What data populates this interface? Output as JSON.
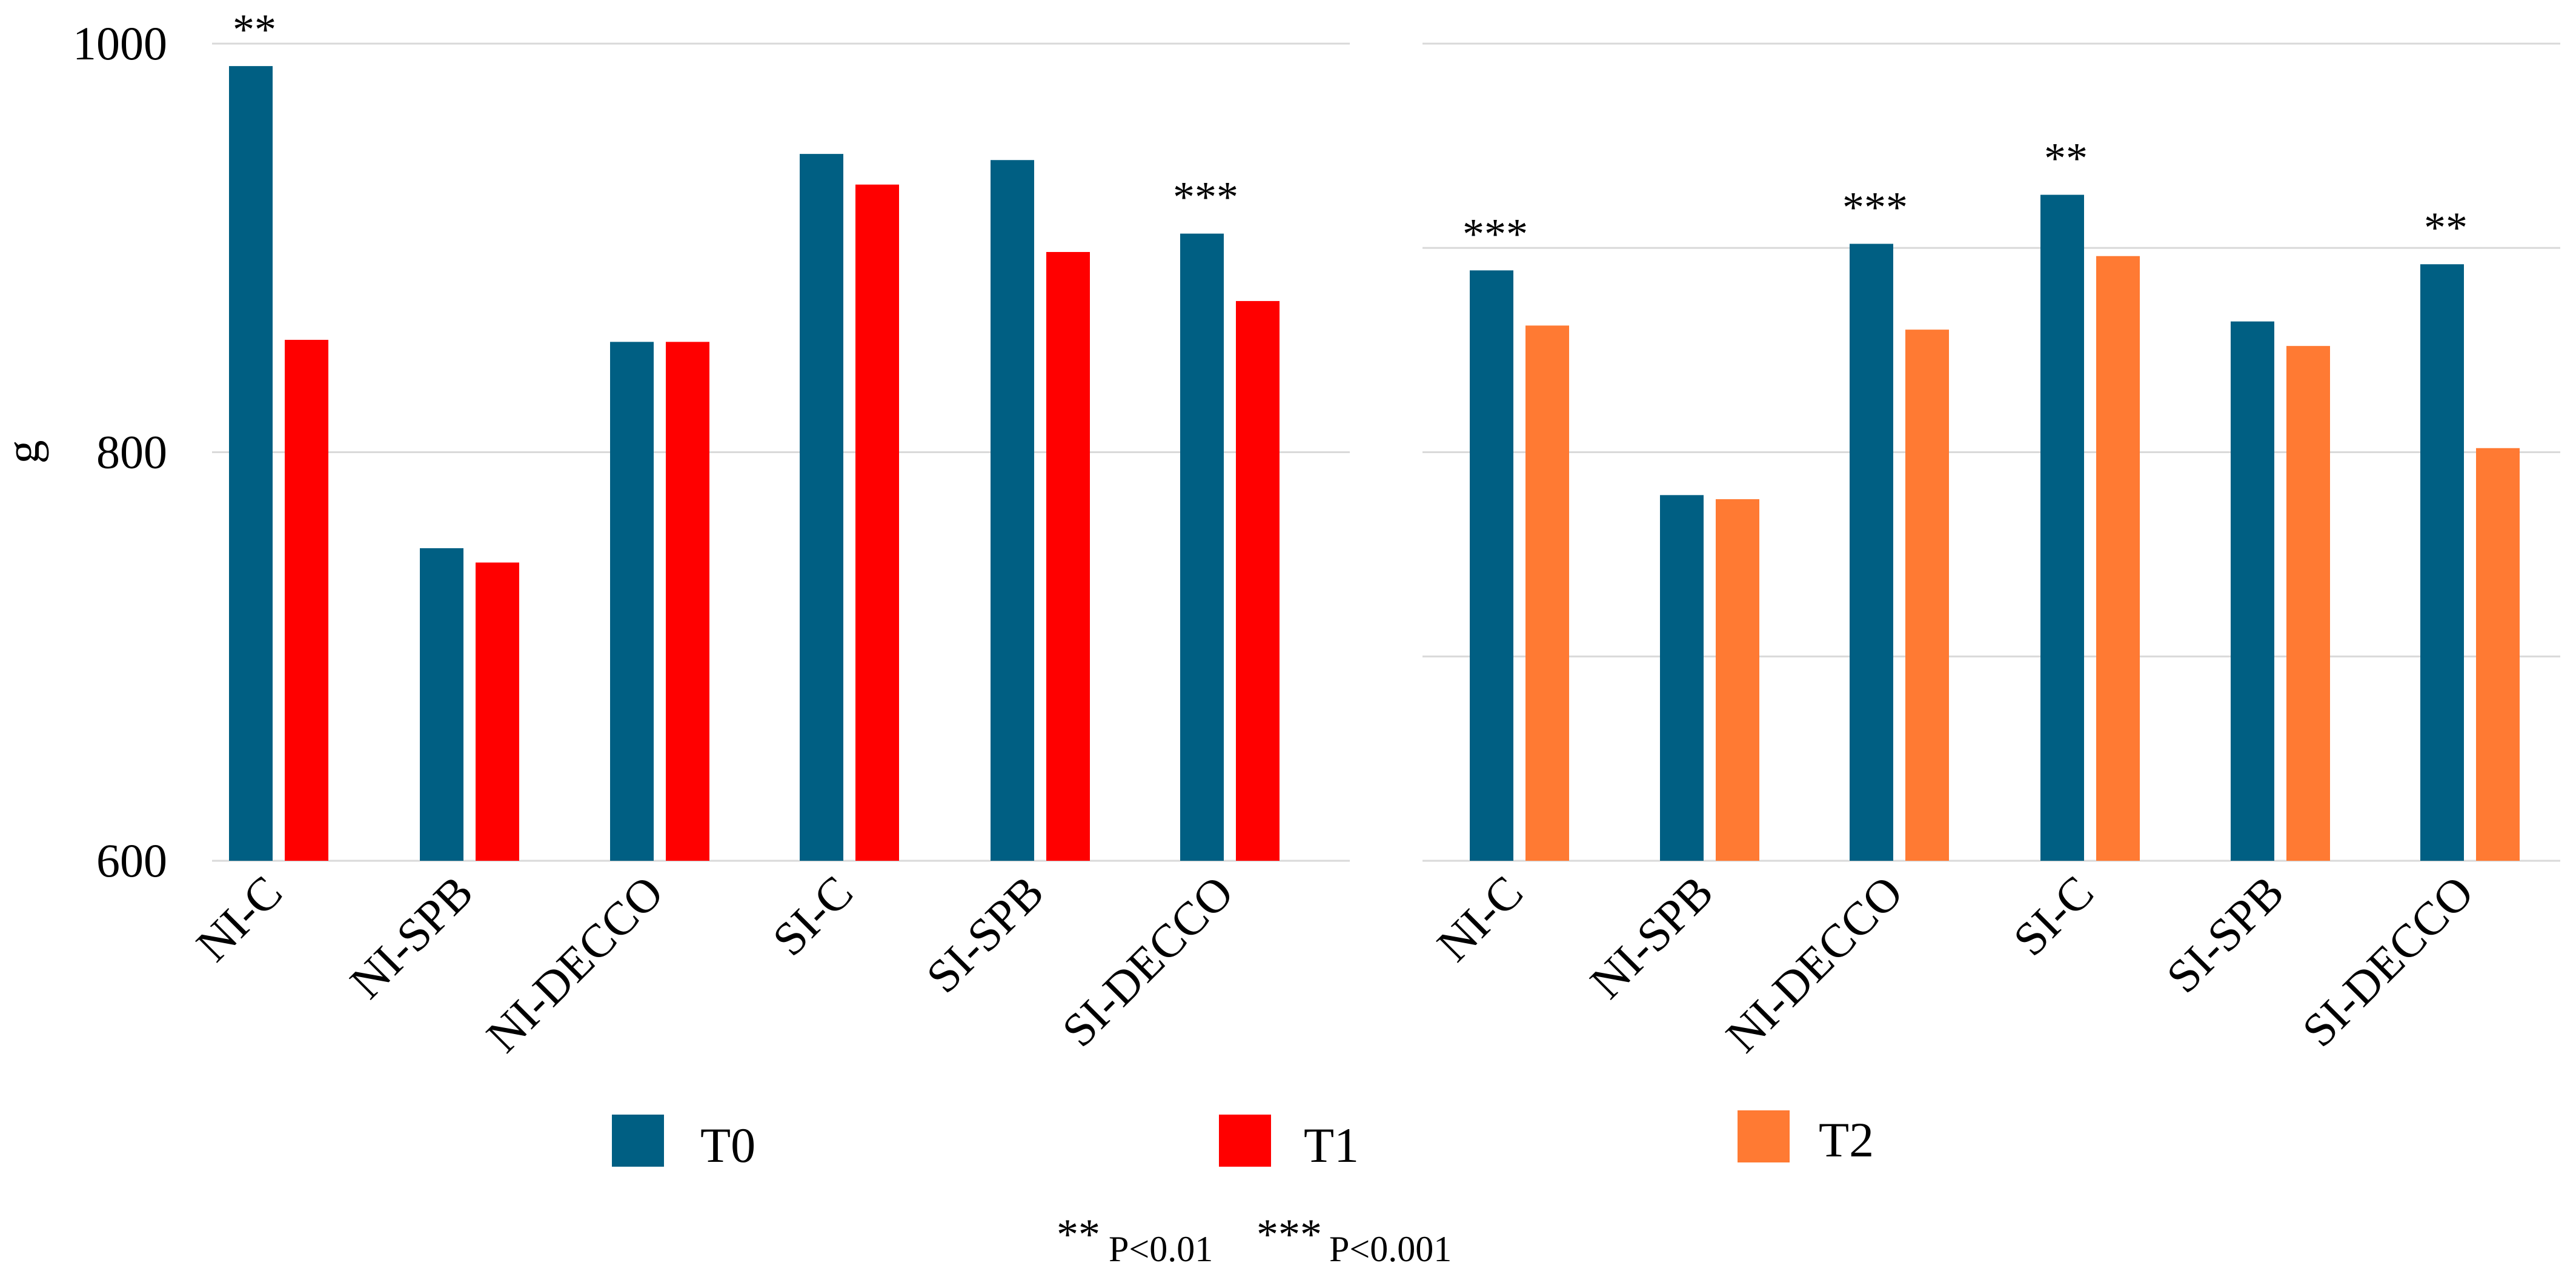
{
  "chart_data": [
    {
      "type": "bar",
      "panel": "left",
      "ylabel": "g",
      "ylim": [
        600,
        1000
      ],
      "yticks": [
        "600",
        "800",
        "1000"
      ],
      "gridlines": [
        600,
        800,
        1000
      ],
      "categories": [
        "NI-C",
        "NI-SPB",
        "NI-DECCO",
        "SI-C",
        "SI-SPB",
        "SI-DECCO"
      ],
      "series": [
        {
          "name": "T0",
          "color": "#005f83",
          "values": [
            989,
            753,
            854,
            946,
            943,
            907
          ]
        },
        {
          "name": "T1",
          "color": "#ff0000",
          "values": [
            855,
            746,
            854,
            931,
            898,
            874
          ]
        }
      ],
      "significance": [
        "**",
        "",
        "",
        "",
        "",
        "***"
      ]
    },
    {
      "type": "bar",
      "panel": "right",
      "ylim": [
        600,
        1000
      ],
      "gridlines": [
        600,
        700,
        800,
        900,
        1000
      ],
      "categories": [
        "NI-C",
        "NI-SPB",
        "NI-DECCO",
        "SI-C",
        "SI-SPB",
        "SI-DECCO"
      ],
      "series": [
        {
          "name": "T0",
          "color": "#005f83",
          "values": [
            889,
            779,
            902,
            926,
            864,
            892
          ]
        },
        {
          "name": "T2",
          "color": "#ff7a33",
          "values": [
            862,
            777,
            860,
            896,
            852,
            802
          ]
        }
      ],
      "significance": [
        "***",
        "",
        "***",
        "**",
        "",
        "**"
      ]
    }
  ],
  "legend": [
    {
      "label": "T0",
      "color": "#005f83"
    },
    {
      "label": "T1",
      "color": "#ff0000"
    },
    {
      "label": "T2",
      "color": "#ff7a33"
    }
  ],
  "footnote": {
    "stars1": "**",
    "p1": "P<0.01",
    "stars2": "***",
    "p2": "P<0.001"
  }
}
